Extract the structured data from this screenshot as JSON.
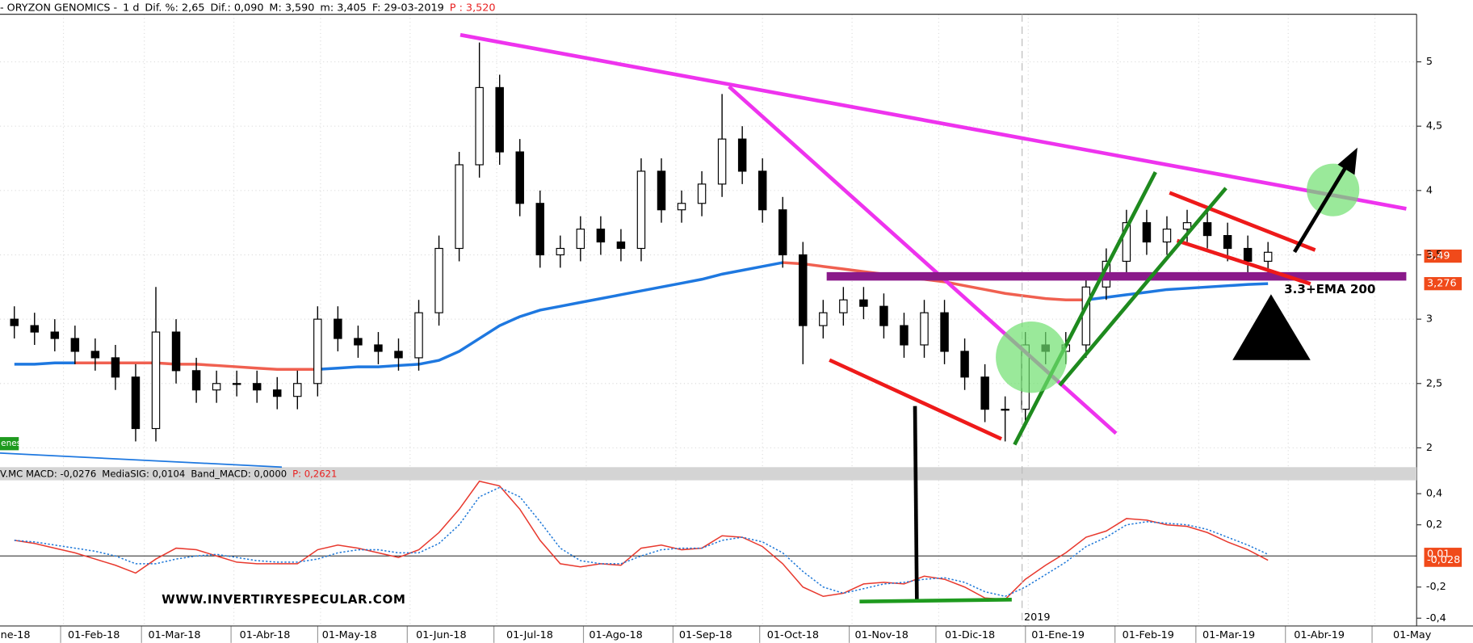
{
  "chart_data": [
    {
      "type": "candlestick",
      "header": [
        "- ORYZON GENOMICS -",
        "1 d",
        "Dif. %: 2,65",
        "Dif.: 0,090",
        "M: 3,590",
        "m: 3,405",
        "F: 29-03-2019",
        "P : 3,520"
      ],
      "x": [
        "2018-01-15",
        "2018-01-22",
        "2018-01-29",
        "2018-02-05",
        "2018-02-12",
        "2018-02-19",
        "2018-02-26",
        "2018-03-05",
        "2018-03-12",
        "2018-03-19",
        "2018-03-26",
        "2018-04-02",
        "2018-04-09",
        "2018-04-16",
        "2018-04-23",
        "2018-04-30",
        "2018-05-07",
        "2018-05-14",
        "2018-05-21",
        "2018-05-28",
        "2018-06-04",
        "2018-06-11",
        "2018-06-18",
        "2018-06-25",
        "2018-07-02",
        "2018-07-09",
        "2018-07-16",
        "2018-07-23",
        "2018-07-30",
        "2018-08-06",
        "2018-08-13",
        "2018-08-20",
        "2018-08-27",
        "2018-09-03",
        "2018-09-10",
        "2018-09-17",
        "2018-09-24",
        "2018-10-01",
        "2018-10-08",
        "2018-10-15",
        "2018-10-22",
        "2018-10-29",
        "2018-11-05",
        "2018-11-12",
        "2018-11-19",
        "2018-11-26",
        "2018-12-03",
        "2018-12-10",
        "2018-12-17",
        "2018-12-24",
        "2018-12-31",
        "2019-01-07",
        "2019-01-14",
        "2019-01-21",
        "2019-01-28",
        "2019-02-04",
        "2019-02-11",
        "2019-02-18",
        "2019-02-25",
        "2019-03-04",
        "2019-03-11",
        "2019-03-18",
        "2019-03-25"
      ],
      "open": [
        3.0,
        2.95,
        2.9,
        2.85,
        2.75,
        2.7,
        2.55,
        2.15,
        2.9,
        2.6,
        2.45,
        2.5,
        2.5,
        2.45,
        2.4,
        2.5,
        3.0,
        2.85,
        2.8,
        2.75,
        2.7,
        3.05,
        3.55,
        4.2,
        4.8,
        4.3,
        3.9,
        3.5,
        3.55,
        3.7,
        3.6,
        3.55,
        4.15,
        3.85,
        3.9,
        4.05,
        4.4,
        4.15,
        3.85,
        3.5,
        2.95,
        3.05,
        3.15,
        3.1,
        2.95,
        2.8,
        3.05,
        2.75,
        2.55,
        2.3,
        2.3,
        2.8,
        2.75,
        2.8,
        3.25,
        3.45,
        3.75,
        3.6,
        3.7,
        3.75,
        3.65,
        3.55,
        3.45
      ],
      "high": [
        3.1,
        3.05,
        3.0,
        2.95,
        2.85,
        2.8,
        2.65,
        3.25,
        3.0,
        2.7,
        2.6,
        2.6,
        2.6,
        2.55,
        2.6,
        3.1,
        3.1,
        2.95,
        2.9,
        2.85,
        3.15,
        3.65,
        4.3,
        5.15,
        4.9,
        4.4,
        4.0,
        3.65,
        3.8,
        3.8,
        3.7,
        4.25,
        4.25,
        4.0,
        4.15,
        4.75,
        4.5,
        4.25,
        3.95,
        3.6,
        3.15,
        3.25,
        3.25,
        3.2,
        3.05,
        3.15,
        3.15,
        2.85,
        2.65,
        2.4,
        2.9,
        2.9,
        2.9,
        3.35,
        3.55,
        3.85,
        3.85,
        3.8,
        3.85,
        3.85,
        3.75,
        3.65,
        3.6
      ],
      "low": [
        2.85,
        2.8,
        2.75,
        2.65,
        2.6,
        2.45,
        2.05,
        2.05,
        2.5,
        2.35,
        2.35,
        2.4,
        2.35,
        2.3,
        2.3,
        2.4,
        2.75,
        2.7,
        2.65,
        2.6,
        2.6,
        2.95,
        3.45,
        4.1,
        4.2,
        3.8,
        3.4,
        3.4,
        3.45,
        3.5,
        3.45,
        3.45,
        3.75,
        3.75,
        3.8,
        3.95,
        4.05,
        3.75,
        3.4,
        2.65,
        2.85,
        2.95,
        3.0,
        2.85,
        2.7,
        2.7,
        2.65,
        2.45,
        2.2,
        2.05,
        2.2,
        2.65,
        2.65,
        2.7,
        3.15,
        3.35,
        3.5,
        3.5,
        3.6,
        3.55,
        3.45,
        3.35,
        3.35
      ],
      "close": [
        2.95,
        2.9,
        2.85,
        2.75,
        2.7,
        2.55,
        2.15,
        2.9,
        2.6,
        2.45,
        2.5,
        2.5,
        2.45,
        2.4,
        2.5,
        3.0,
        2.85,
        2.8,
        2.75,
        2.7,
        3.05,
        3.55,
        4.2,
        4.8,
        4.3,
        3.9,
        3.5,
        3.55,
        3.7,
        3.6,
        3.55,
        4.15,
        3.85,
        3.9,
        4.05,
        4.4,
        4.15,
        3.85,
        3.5,
        2.95,
        3.05,
        3.15,
        3.1,
        2.95,
        2.8,
        3.05,
        2.75,
        2.55,
        2.3,
        2.3,
        2.8,
        2.75,
        2.8,
        3.25,
        3.45,
        3.75,
        3.6,
        3.7,
        3.75,
        3.65,
        3.55,
        3.45,
        3.52
      ],
      "overlays": [
        {
          "color": "#1e78e0",
          "values": [
            2.65,
            2.65,
            2.66,
            2.66,
            null,
            null,
            null,
            null,
            null,
            null,
            null,
            null,
            null,
            null,
            null,
            2.61,
            2.62,
            2.63,
            2.63,
            2.64,
            2.65,
            2.68,
            2.75,
            2.85,
            2.95,
            3.02,
            3.07,
            3.1,
            3.13,
            3.16,
            3.19,
            3.22,
            3.25,
            3.28,
            3.31,
            3.35,
            3.38,
            3.41,
            3.44,
            null,
            null,
            null,
            null,
            null,
            null,
            null,
            null,
            null,
            null,
            null,
            null,
            null,
            null,
            3.15,
            3.17,
            3.19,
            3.21,
            3.23,
            3.24,
            3.25,
            3.26,
            3.27,
            3.276
          ]
        },
        {
          "color": "#f06050",
          "values": [
            null,
            null,
            null,
            2.66,
            2.66,
            2.66,
            2.66,
            2.66,
            2.65,
            2.65,
            2.64,
            2.63,
            2.62,
            2.61,
            2.61,
            2.61,
            null,
            null,
            null,
            null,
            null,
            null,
            null,
            null,
            null,
            null,
            null,
            null,
            null,
            null,
            null,
            null,
            null,
            null,
            null,
            null,
            null,
            null,
            3.44,
            3.43,
            3.41,
            3.39,
            3.37,
            3.35,
            3.33,
            3.31,
            3.29,
            3.26,
            3.23,
            3.2,
            3.18,
            3.16,
            3.15,
            3.15,
            null,
            null,
            null,
            null,
            null,
            null,
            null,
            null,
            null
          ]
        }
      ],
      "ylim": [
        1.85,
        5.37
      ],
      "yticks": [
        2,
        {
          "value": 2.5,
          "label": "2,5"
        },
        3,
        {
          "value": 3.5,
          "label": "3,5"
        },
        4,
        {
          "value": 4.5,
          "label": "4,5"
        },
        5
      ],
      "grid": true,
      "price_tags": [
        {
          "value": 3.49,
          "label": "3,49",
          "color": "#f04a1a"
        },
        {
          "value": 3.276,
          "label": "3,276",
          "color": "#f04a1a"
        }
      ],
      "annotations": [
        "3.3+EMA 200",
        "enes"
      ]
    },
    {
      "type": "line",
      "header": [
        "V.MC MACD: -0,0276",
        "MediaSIG: 0,0104",
        "Band_MACD: 0,0000",
        "P: 0,2621"
      ],
      "series": [
        {
          "color": "#e8392e",
          "values": [
            0.1,
            0.08,
            0.05,
            0.02,
            -0.02,
            -0.06,
            -0.11,
            -0.02,
            0.05,
            0.04,
            0.0,
            -0.04,
            -0.05,
            -0.05,
            -0.05,
            0.04,
            0.07,
            0.05,
            0.02,
            -0.01,
            0.04,
            0.15,
            0.3,
            0.48,
            0.45,
            0.3,
            0.1,
            -0.05,
            -0.07,
            -0.05,
            -0.06,
            0.05,
            0.07,
            0.04,
            0.05,
            0.13,
            0.12,
            0.06,
            -0.05,
            -0.2,
            -0.26,
            -0.24,
            -0.18,
            -0.17,
            -0.18,
            -0.13,
            -0.15,
            -0.2,
            -0.27,
            -0.28,
            -0.15,
            -0.06,
            0.02,
            0.12,
            0.16,
            0.24,
            0.23,
            0.2,
            0.19,
            0.15,
            0.09,
            0.04,
            -0.028
          ]
        },
        {
          "color": "#1e78d8",
          "dashed": true,
          "values": [
            0.1,
            0.09,
            0.07,
            0.05,
            0.03,
            0.0,
            -0.05,
            -0.05,
            -0.02,
            0.0,
            0.01,
            -0.01,
            -0.03,
            -0.04,
            -0.04,
            -0.02,
            0.02,
            0.04,
            0.04,
            0.02,
            0.02,
            0.08,
            0.2,
            0.38,
            0.44,
            0.38,
            0.22,
            0.05,
            -0.03,
            -0.05,
            -0.05,
            0.0,
            0.04,
            0.05,
            0.05,
            0.1,
            0.12,
            0.09,
            0.02,
            -0.1,
            -0.2,
            -0.24,
            -0.21,
            -0.18,
            -0.17,
            -0.15,
            -0.14,
            -0.17,
            -0.23,
            -0.26,
            -0.2,
            -0.12,
            -0.04,
            0.06,
            0.12,
            0.2,
            0.22,
            0.21,
            0.2,
            0.17,
            0.12,
            0.07,
            0.0104
          ]
        }
      ],
      "ylim": [
        -0.45,
        0.48
      ],
      "yticks": [
        {
          "value": 0.4,
          "label": "0,4"
        },
        {
          "value": 0.2,
          "label": "0,2"
        },
        {
          "value": -0.2,
          "label": "-0,2"
        },
        {
          "value": -0.4,
          "label": "-0,4"
        }
      ],
      "price_tags": [
        {
          "value": 0.0104,
          "label": "0,01",
          "color": "#f04a1a"
        },
        {
          "value": -0.028,
          "label": "-0,028",
          "color": "#f04a1a"
        }
      ],
      "xticks": [
        {
          "value": "2018-01-01",
          "label": "ne-18"
        },
        {
          "value": "2018-02-01",
          "label": "01-Feb-18"
        },
        {
          "value": "2018-03-01",
          "label": "01-Mar-18"
        },
        {
          "value": "2018-04-01",
          "label": "01-Abr-18"
        },
        {
          "value": "2018-05-01",
          "label": "01-May-18"
        },
        {
          "value": "2018-06-01",
          "label": "01-Jun-18"
        },
        {
          "value": "2018-07-01",
          "label": "01-Jul-18"
        },
        {
          "value": "2018-08-01",
          "label": "01-Ago-18"
        },
        {
          "value": "2018-09-01",
          "label": "01-Sep-18"
        },
        {
          "value": "2018-10-01",
          "label": "01-Oct-18"
        },
        {
          "value": "2018-11-01",
          "label": "01-Nov-18"
        },
        {
          "value": "2018-12-01",
          "label": "01-Dic-18"
        },
        {
          "value": "2019-01-01",
          "label": "01-Ene-19"
        },
        {
          "value": "2019-02-01",
          "label": "01-Feb-19"
        },
        {
          "value": "2019-03-01",
          "label": "01-Mar-19"
        },
        {
          "value": "2019-04-01",
          "label": "01-Abr-19"
        },
        {
          "value": "2019-05-01",
          "label": "01-May"
        }
      ],
      "year_label": "2019",
      "watermark": "WWW.INVERTIRYESPECULAR.COM"
    }
  ]
}
